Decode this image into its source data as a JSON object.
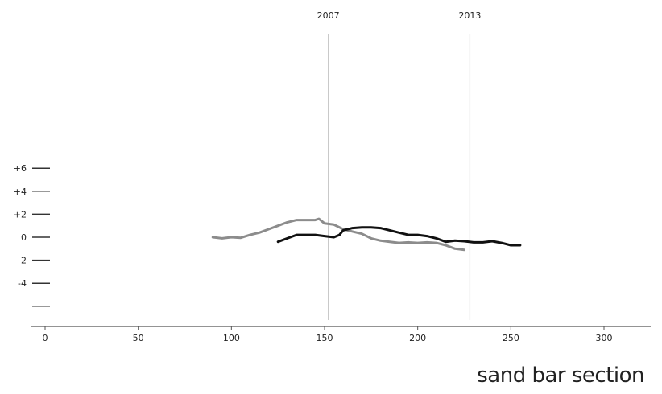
{
  "chart_data": {
    "type": "line",
    "title": "",
    "caption": "sand bar section",
    "xlabel": "",
    "ylabel": "",
    "xlim": [
      0,
      320
    ],
    "ylim": [
      -6,
      6
    ],
    "x_ticks": [
      0,
      50,
      100,
      150,
      200,
      250,
      300
    ],
    "y_ticks": [
      {
        "value": 6,
        "label": "+6"
      },
      {
        "value": 4,
        "label": "+4"
      },
      {
        "value": 2,
        "label": "+2"
      },
      {
        "value": 0,
        "label": "0"
      },
      {
        "value": -2,
        "label": "-2"
      },
      {
        "value": -4,
        "label": "-4"
      },
      {
        "value": -6,
        "label": ""
      }
    ],
    "markers": [
      {
        "label": "2007",
        "x": 152
      },
      {
        "label": "2013",
        "x": 228
      }
    ],
    "grid": false,
    "series": [
      {
        "color": "#8c8c8c",
        "points": [
          [
            90,
            0
          ],
          [
            95,
            -0.1
          ],
          [
            100,
            0
          ],
          [
            105,
            -0.05
          ],
          [
            110,
            0.2
          ],
          [
            115,
            0.4
          ],
          [
            120,
            0.7
          ],
          [
            125,
            1.0
          ],
          [
            130,
            1.3
          ],
          [
            135,
            1.5
          ],
          [
            140,
            1.5
          ],
          [
            145,
            1.5
          ],
          [
            147,
            1.6
          ],
          [
            150,
            1.2
          ],
          [
            155,
            1.1
          ],
          [
            160,
            0.7
          ],
          [
            165,
            0.5
          ],
          [
            170,
            0.3
          ],
          [
            175,
            -0.1
          ],
          [
            180,
            -0.3
          ],
          [
            185,
            -0.4
          ],
          [
            190,
            -0.5
          ],
          [
            195,
            -0.45
          ],
          [
            200,
            -0.5
          ],
          [
            205,
            -0.45
          ],
          [
            210,
            -0.5
          ],
          [
            215,
            -0.7
          ],
          [
            220,
            -1.0
          ],
          [
            225,
            -1.1
          ]
        ]
      },
      {
        "color": "#111111",
        "points": [
          [
            125,
            -0.4
          ],
          [
            130,
            -0.1
          ],
          [
            135,
            0.2
          ],
          [
            140,
            0.2
          ],
          [
            145,
            0.2
          ],
          [
            150,
            0.1
          ],
          [
            155,
            0.0
          ],
          [
            158,
            0.2
          ],
          [
            160,
            0.6
          ],
          [
            165,
            0.8
          ],
          [
            170,
            0.85
          ],
          [
            175,
            0.85
          ],
          [
            180,
            0.8
          ],
          [
            185,
            0.6
          ],
          [
            190,
            0.4
          ],
          [
            195,
            0.2
          ],
          [
            200,
            0.2
          ],
          [
            205,
            0.1
          ],
          [
            210,
            -0.1
          ],
          [
            215,
            -0.4
          ],
          [
            220,
            -0.3
          ],
          [
            225,
            -0.35
          ],
          [
            230,
            -0.45
          ],
          [
            235,
            -0.45
          ],
          [
            240,
            -0.35
          ],
          [
            245,
            -0.5
          ],
          [
            250,
            -0.7
          ],
          [
            255,
            -0.7
          ]
        ]
      }
    ]
  }
}
